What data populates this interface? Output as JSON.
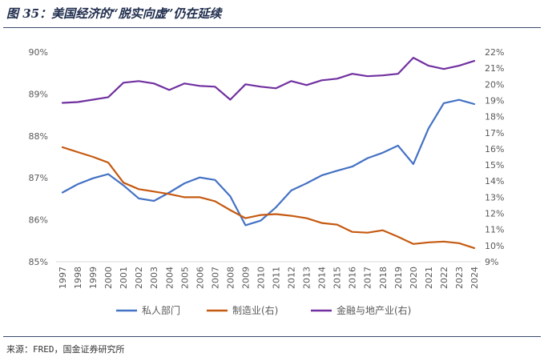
{
  "header": {
    "title": "图 35：美国经济的“脱实向虚”仍在延续"
  },
  "footer": {
    "source": "来源：FRED，国金证券研究所"
  },
  "chart_data": {
    "type": "line",
    "title": "图 35：美国经济的“脱实向虚”仍在延续",
    "categories": [
      "1997",
      "1998",
      "1999",
      "2000",
      "2001",
      "2002",
      "2003",
      "2004",
      "2005",
      "2006",
      "2007",
      "2008",
      "2009",
      "2010",
      "2011",
      "2012",
      "2013",
      "2014",
      "2015",
      "2016",
      "2017",
      "2018",
      "2019",
      "2020",
      "2021",
      "2022",
      "2023",
      "2024"
    ],
    "left_axis": {
      "ylim": [
        85,
        90
      ],
      "ticks": [
        "85%",
        "86%",
        "87%",
        "88%",
        "89%",
        "90%"
      ],
      "tick_values": [
        85,
        86,
        87,
        88,
        89,
        90
      ]
    },
    "right_axis": {
      "ylim": [
        9,
        22
      ],
      "ticks": [
        "9%",
        "10%",
        "11%",
        "12%",
        "13%",
        "14%",
        "15%",
        "16%",
        "17%",
        "18%",
        "19%",
        "20%",
        "21%",
        "22%"
      ],
      "tick_values": [
        9,
        10,
        11,
        12,
        13,
        14,
        15,
        16,
        17,
        18,
        19,
        20,
        21,
        22
      ]
    },
    "series": [
      {
        "name": "私人部门",
        "axis": "left",
        "color": "#4472c4",
        "values": [
          86.65,
          86.85,
          86.99,
          87.09,
          86.82,
          86.51,
          86.45,
          86.65,
          86.87,
          87.01,
          86.95,
          86.56,
          85.87,
          85.98,
          86.3,
          86.7,
          86.87,
          87.06,
          87.17,
          87.27,
          87.47,
          87.6,
          87.77,
          87.33,
          88.18,
          88.78,
          88.86,
          88.76
        ]
      },
      {
        "name": "制造业(右)",
        "axis": "right",
        "color": "#c55a11",
        "values": [
          16.1,
          15.8,
          15.5,
          15.15,
          13.9,
          13.5,
          13.35,
          13.2,
          13.0,
          13.0,
          12.75,
          12.2,
          11.7,
          11.9,
          11.95,
          11.85,
          11.7,
          11.4,
          11.3,
          10.85,
          10.8,
          10.95,
          10.55,
          10.1,
          10.2,
          10.25,
          10.15,
          9.85
        ]
      },
      {
        "name": "金融与地产业(右)",
        "axis": "right",
        "color": "#7030a0",
        "values": [
          18.85,
          18.9,
          19.05,
          19.2,
          20.1,
          20.2,
          20.05,
          19.65,
          20.05,
          19.9,
          19.85,
          19.05,
          20.0,
          19.85,
          19.75,
          20.2,
          19.95,
          20.25,
          20.35,
          20.65,
          20.5,
          20.55,
          20.65,
          21.65,
          21.15,
          20.95,
          21.15,
          21.45
        ]
      }
    ],
    "legend": [
      "私人部门",
      "制造业(右)",
      "金融与地产业(右)"
    ],
    "legend_position": "bottom",
    "grid": false
  }
}
